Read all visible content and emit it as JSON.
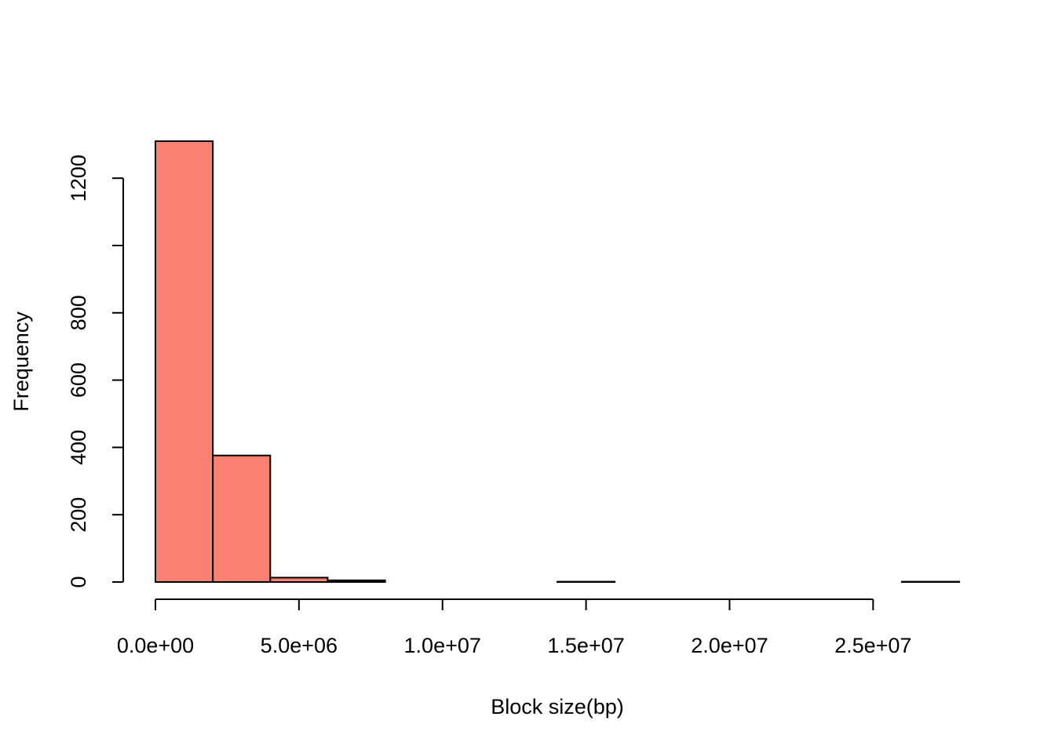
{
  "chart_data": {
    "type": "histogram",
    "title": "",
    "xlabel": "Block size(bp)",
    "ylabel": "Frequency",
    "bin_width": 2000000,
    "bins": [
      {
        "start": 0,
        "end": 2000000,
        "count": 1310
      },
      {
        "start": 2000000,
        "end": 4000000,
        "count": 376
      },
      {
        "start": 4000000,
        "end": 6000000,
        "count": 13
      },
      {
        "start": 6000000,
        "end": 8000000,
        "count": 5
      },
      {
        "start": 8000000,
        "end": 10000000,
        "count": 0
      },
      {
        "start": 10000000,
        "end": 12000000,
        "count": 0
      },
      {
        "start": 12000000,
        "end": 14000000,
        "count": 0
      },
      {
        "start": 14000000,
        "end": 16000000,
        "count": 1
      },
      {
        "start": 16000000,
        "end": 18000000,
        "count": 0
      },
      {
        "start": 18000000,
        "end": 20000000,
        "count": 0
      },
      {
        "start": 20000000,
        "end": 22000000,
        "count": 0
      },
      {
        "start": 22000000,
        "end": 24000000,
        "count": 0
      },
      {
        "start": 24000000,
        "end": 26000000,
        "count": 0
      },
      {
        "start": 26000000,
        "end": 28000000,
        "count": 1
      }
    ],
    "xlim": [
      0,
      28000000
    ],
    "ylim": [
      0,
      1310
    ],
    "x_ticks": [
      {
        "value": 0,
        "label": "0.0e+00"
      },
      {
        "value": 5000000,
        "label": "5.0e+06"
      },
      {
        "value": 10000000,
        "label": "1.0e+07"
      },
      {
        "value": 15000000,
        "label": "1.5e+07"
      },
      {
        "value": 20000000,
        "label": "2.0e+07"
      },
      {
        "value": 25000000,
        "label": "2.5e+07"
      }
    ],
    "y_ticks": [
      {
        "value": 0,
        "label": "0"
      },
      {
        "value": 200,
        "label": "200"
      },
      {
        "value": 400,
        "label": "400"
      },
      {
        "value": 600,
        "label": "600"
      },
      {
        "value": 800,
        "label": "800"
      },
      {
        "value": 1000,
        "label": ""
      },
      {
        "value": 1200,
        "label": "1200"
      }
    ],
    "bar_color": "#FA8072",
    "border_color": "#000000",
    "grid": false,
    "legend": "none"
  }
}
